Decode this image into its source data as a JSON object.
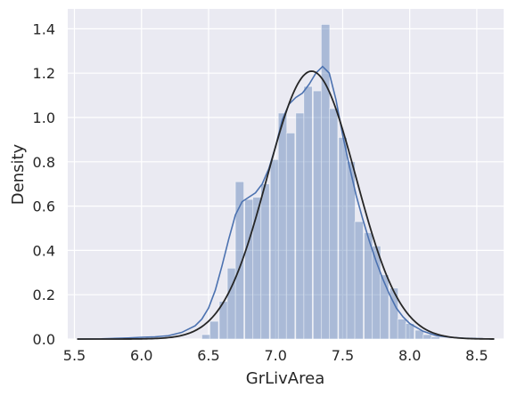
{
  "chart_data": {
    "type": "bar",
    "xlabel": "GrLivArea",
    "ylabel": "Density",
    "xlim": [
      5.45,
      8.7
    ],
    "ylim": [
      0,
      1.49
    ],
    "x_ticks": [
      "5.5",
      "6.0",
      "6.5",
      "7.0",
      "7.5",
      "8.0",
      "8.5"
    ],
    "y_ticks": [
      "0.0",
      "0.2",
      "0.4",
      "0.6",
      "0.8",
      "1.0",
      "1.2",
      "1.4"
    ],
    "grid": true,
    "legend": "none",
    "colors": {
      "background": "#eaeaf2",
      "grid": "#ffffff",
      "bars": "#4c72b0",
      "kde": "#4c72b0",
      "normal_fit": "#262626"
    },
    "histogram": {
      "bin_width": 0.0633,
      "bins": [
        {
          "x": 6.45,
          "density": 0.02
        },
        {
          "x": 6.51,
          "density": 0.08
        },
        {
          "x": 6.58,
          "density": 0.17
        },
        {
          "x": 6.64,
          "density": 0.32
        },
        {
          "x": 6.7,
          "density": 0.71
        },
        {
          "x": 6.77,
          "density": 0.63
        },
        {
          "x": 6.83,
          "density": 0.64
        },
        {
          "x": 6.89,
          "density": 0.7
        },
        {
          "x": 6.96,
          "density": 0.81
        },
        {
          "x": 7.02,
          "density": 1.02
        },
        {
          "x": 7.08,
          "density": 0.93
        },
        {
          "x": 7.15,
          "density": 1.02
        },
        {
          "x": 7.21,
          "density": 1.14
        },
        {
          "x": 7.28,
          "density": 1.12
        },
        {
          "x": 7.34,
          "density": 1.42
        },
        {
          "x": 7.4,
          "density": 1.04
        },
        {
          "x": 7.47,
          "density": 0.91
        },
        {
          "x": 7.53,
          "density": 0.8
        },
        {
          "x": 7.59,
          "density": 0.53
        },
        {
          "x": 7.66,
          "density": 0.48
        },
        {
          "x": 7.72,
          "density": 0.42
        },
        {
          "x": 7.78,
          "density": 0.29
        },
        {
          "x": 7.85,
          "density": 0.23
        },
        {
          "x": 7.91,
          "density": 0.09
        },
        {
          "x": 7.97,
          "density": 0.07
        },
        {
          "x": 8.04,
          "density": 0.04
        },
        {
          "x": 8.1,
          "density": 0.02
        },
        {
          "x": 8.16,
          "density": 0.01
        }
      ]
    },
    "kde": {
      "x": [
        5.52,
        5.7,
        5.9,
        6.0,
        6.1,
        6.2,
        6.3,
        6.4,
        6.45,
        6.5,
        6.55,
        6.6,
        6.65,
        6.7,
        6.75,
        6.8,
        6.85,
        6.9,
        6.95,
        7.0,
        7.05,
        7.1,
        7.15,
        7.2,
        7.25,
        7.3,
        7.35,
        7.4,
        7.45,
        7.5,
        7.55,
        7.6,
        7.65,
        7.7,
        7.75,
        7.8,
        7.85,
        7.9,
        7.95,
        8.0,
        8.1,
        8.2,
        8.3,
        8.4,
        8.5,
        8.63
      ],
      "y": [
        0.0,
        0.001,
        0.005,
        0.008,
        0.01,
        0.015,
        0.03,
        0.06,
        0.09,
        0.14,
        0.22,
        0.33,
        0.45,
        0.56,
        0.62,
        0.64,
        0.66,
        0.7,
        0.77,
        0.87,
        0.99,
        1.06,
        1.09,
        1.11,
        1.15,
        1.2,
        1.23,
        1.2,
        1.08,
        0.92,
        0.78,
        0.65,
        0.54,
        0.44,
        0.35,
        0.27,
        0.2,
        0.14,
        0.1,
        0.07,
        0.035,
        0.015,
        0.008,
        0.004,
        0.002,
        0.0
      ]
    },
    "normal_fit": {
      "mean": 7.268,
      "std": 0.33,
      "x_range": [
        5.52,
        8.63
      ]
    }
  }
}
